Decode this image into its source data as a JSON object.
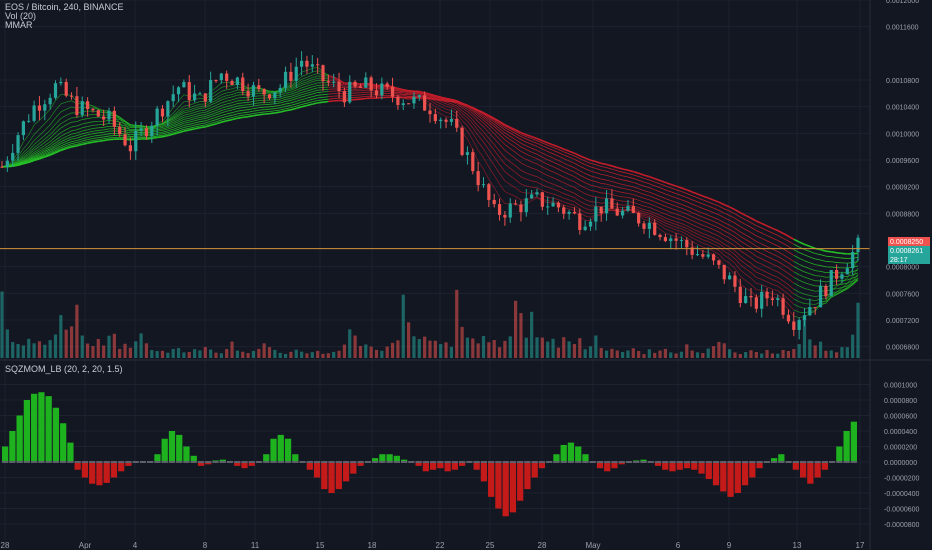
{
  "header": {
    "symbol_line": "EOS / Bitcoin, 240, BINANCE",
    "vol_label": "Vol (20)",
    "mmar_label": "MMAR"
  },
  "indicator": {
    "label": "SQZMOM_LB (20, 2, 20, 1.5)"
  },
  "colors": {
    "background": "#131722",
    "grid": "#1e2230",
    "bull": "#26a69a",
    "bear": "#ef5350",
    "ribbon_up": "#26c426",
    "ribbon_down": "#c81e2a",
    "hline": "#d2933a",
    "mom_up": "#1fb21f",
    "mom_down": "#c41a1a"
  },
  "price_tags": {
    "red_tag": "0.0008250",
    "teal_tag": "0.0008261",
    "count_tag": "28:17"
  },
  "chart_data": [
    {
      "type": "line",
      "title": "EOS / Bitcoin, 240, BINANCE",
      "x_ticks": [
        "28",
        "Apr",
        "4",
        "8",
        "11",
        "15",
        "18",
        "22",
        "25",
        "28",
        "May",
        "6",
        "9",
        "13",
        "17"
      ],
      "y_ticks": [
        "0.0012000",
        "0.0011600",
        "0.0010800",
        "0.0010400",
        "0.0010000",
        "0.0009600",
        "0.0009200",
        "0.0008800",
        "0.0008000",
        "0.0007600",
        "0.0007200",
        "0.0006800"
      ],
      "ylim": [
        0.00066,
        0.0012
      ],
      "horizontal_line": 0.000827,
      "price_path": [
        [
          0,
          0.00095
        ],
        [
          3,
          0.001
        ],
        [
          6,
          0.00104
        ],
        [
          10,
          0.00107
        ],
        [
          14,
          0.00104
        ],
        [
          20,
          0.00102
        ],
        [
          24,
          0.00098
        ],
        [
          28,
          0.00102
        ],
        [
          33,
          0.00107
        ],
        [
          37,
          0.00105
        ],
        [
          41,
          0.00109
        ],
        [
          44,
          0.00108
        ],
        [
          48,
          0.00106
        ],
        [
          52,
          0.00107
        ],
        [
          56,
          0.00111
        ],
        [
          60,
          0.00108
        ],
        [
          64,
          0.00106
        ],
        [
          68,
          0.00107
        ],
        [
          72,
          0.00106
        ],
        [
          76,
          0.00105
        ],
        [
          80,
          0.00104
        ],
        [
          84,
          0.00101
        ],
        [
          88,
          0.00095
        ],
        [
          92,
          0.00088
        ],
        [
          96,
          0.00089
        ],
        [
          100,
          0.0009
        ],
        [
          104,
          0.00089
        ],
        [
          108,
          0.00087
        ],
        [
          112,
          0.00089
        ],
        [
          116,
          0.00088
        ],
        [
          120,
          0.00087
        ],
        [
          124,
          0.00085
        ],
        [
          128,
          0.00083
        ],
        [
          132,
          0.00081
        ],
        [
          136,
          0.00078
        ],
        [
          140,
          0.00074
        ],
        [
          144,
          0.00076
        ],
        [
          148,
          0.00072
        ],
        [
          152,
          0.00075
        ],
        [
          156,
          0.00079
        ],
        [
          160,
          0.00083
        ]
      ],
      "volume": {
        "label": "Vol (20)",
        "relative_heights": [
          0.95,
          0.4,
          0.35,
          0.28,
          0.22,
          0.3,
          0.2,
          0.25,
          0.18,
          0.22,
          0.3,
          0.8,
          0.55,
          0.45,
          0.95,
          0.3,
          0.25,
          0.2,
          0.35,
          0.22,
          0.28,
          0.3,
          0.2,
          0.25,
          0.18,
          0.22,
          0.3,
          0.2,
          0.15,
          0.12,
          0.1,
          0.08,
          0.12,
          0.15,
          0.1,
          0.08,
          0.12,
          0.1,
          0.15,
          0.12,
          0.08,
          0.1,
          0.12,
          0.2,
          0.15,
          0.1,
          0.08,
          0.12,
          0.18,
          0.25,
          0.2,
          0.15,
          0.1,
          0.08,
          0.12,
          0.15,
          0.1,
          0.08,
          0.12,
          0.1,
          0.08,
          0.1,
          0.12,
          0.15,
          0.2,
          0.5,
          0.35,
          0.25,
          0.2,
          0.15,
          0.1,
          0.12,
          0.18,
          0.22,
          0.35,
          0.8,
          0.55,
          0.4,
          0.3,
          0.45,
          0.35,
          0.25,
          0.2,
          0.3,
          0.15
        ]
      }
    },
    {
      "type": "bar",
      "title": "SQZMOM_LB (20, 2, 20, 1.5)",
      "y_ticks": [
        "0.0001000",
        "0.0000800",
        "0.0000600",
        "0.0000400",
        "0.0000200",
        "0.0000000",
        "-0.0000200",
        "-0.0000400",
        "-0.0000600",
        "-0.0000800"
      ],
      "ylim": [
        -8e-05,
        0.0001
      ],
      "values": [
        2e-05,
        4e-05,
        6e-05,
        8e-05,
        8.8e-05,
        9e-05,
        8.5e-05,
        7e-05,
        5e-05,
        2.5e-05,
        -1e-05,
        -2e-05,
        -2.8e-05,
        -3e-05,
        -2.7e-05,
        -2e-05,
        -1.2e-05,
        -5e-06,
        0,
        0,
        0,
        1e-05,
        3e-05,
        4e-05,
        3.5e-05,
        2e-05,
        8e-06,
        -5e-06,
        -3e-06,
        2e-06,
        3e-06,
        0,
        -5e-06,
        -8e-06,
        -5e-06,
        0,
        1e-05,
        3e-05,
        3.5e-05,
        3e-05,
        1e-05,
        0,
        -1e-05,
        -2e-05,
        -3.5e-05,
        -4e-05,
        -3.5e-05,
        -2.5e-05,
        -1.5e-05,
        -5e-06,
        0,
        5e-06,
        1e-05,
        1e-05,
        8e-06,
        3e-06,
        0,
        -5e-06,
        -1.2e-05,
        -1e-05,
        -8e-06,
        -1.2e-05,
        -1e-05,
        -5e-06,
        0,
        -1e-05,
        -2.5e-05,
        -4.5e-05,
        -6e-05,
        -7e-05,
        -6.5e-05,
        -5e-05,
        -3.5e-05,
        -2e-05,
        -8e-06,
        0,
        1e-05,
        2.2e-05,
        2.5e-05,
        2e-05,
        1e-05,
        0,
        -8e-06,
        -1.2e-05,
        -8e-06,
        -3e-06,
        0,
        2e-06,
        3e-06,
        0,
        -5e-06,
        -1e-05,
        -1.2e-05,
        -1e-05,
        -8e-06,
        -1e-05,
        -1.5e-05,
        -2.2e-05,
        -3e-05,
        -3.8e-05,
        -4.5e-05,
        -4e-05,
        -3e-05,
        -2e-05,
        -8e-06,
        0,
        5e-06,
        1e-05,
        0,
        -1e-05,
        -2e-05,
        -2.8e-05,
        -2e-05,
        -1e-05,
        0,
        2e-05,
        4e-05,
        5.2e-05
      ]
    }
  ]
}
